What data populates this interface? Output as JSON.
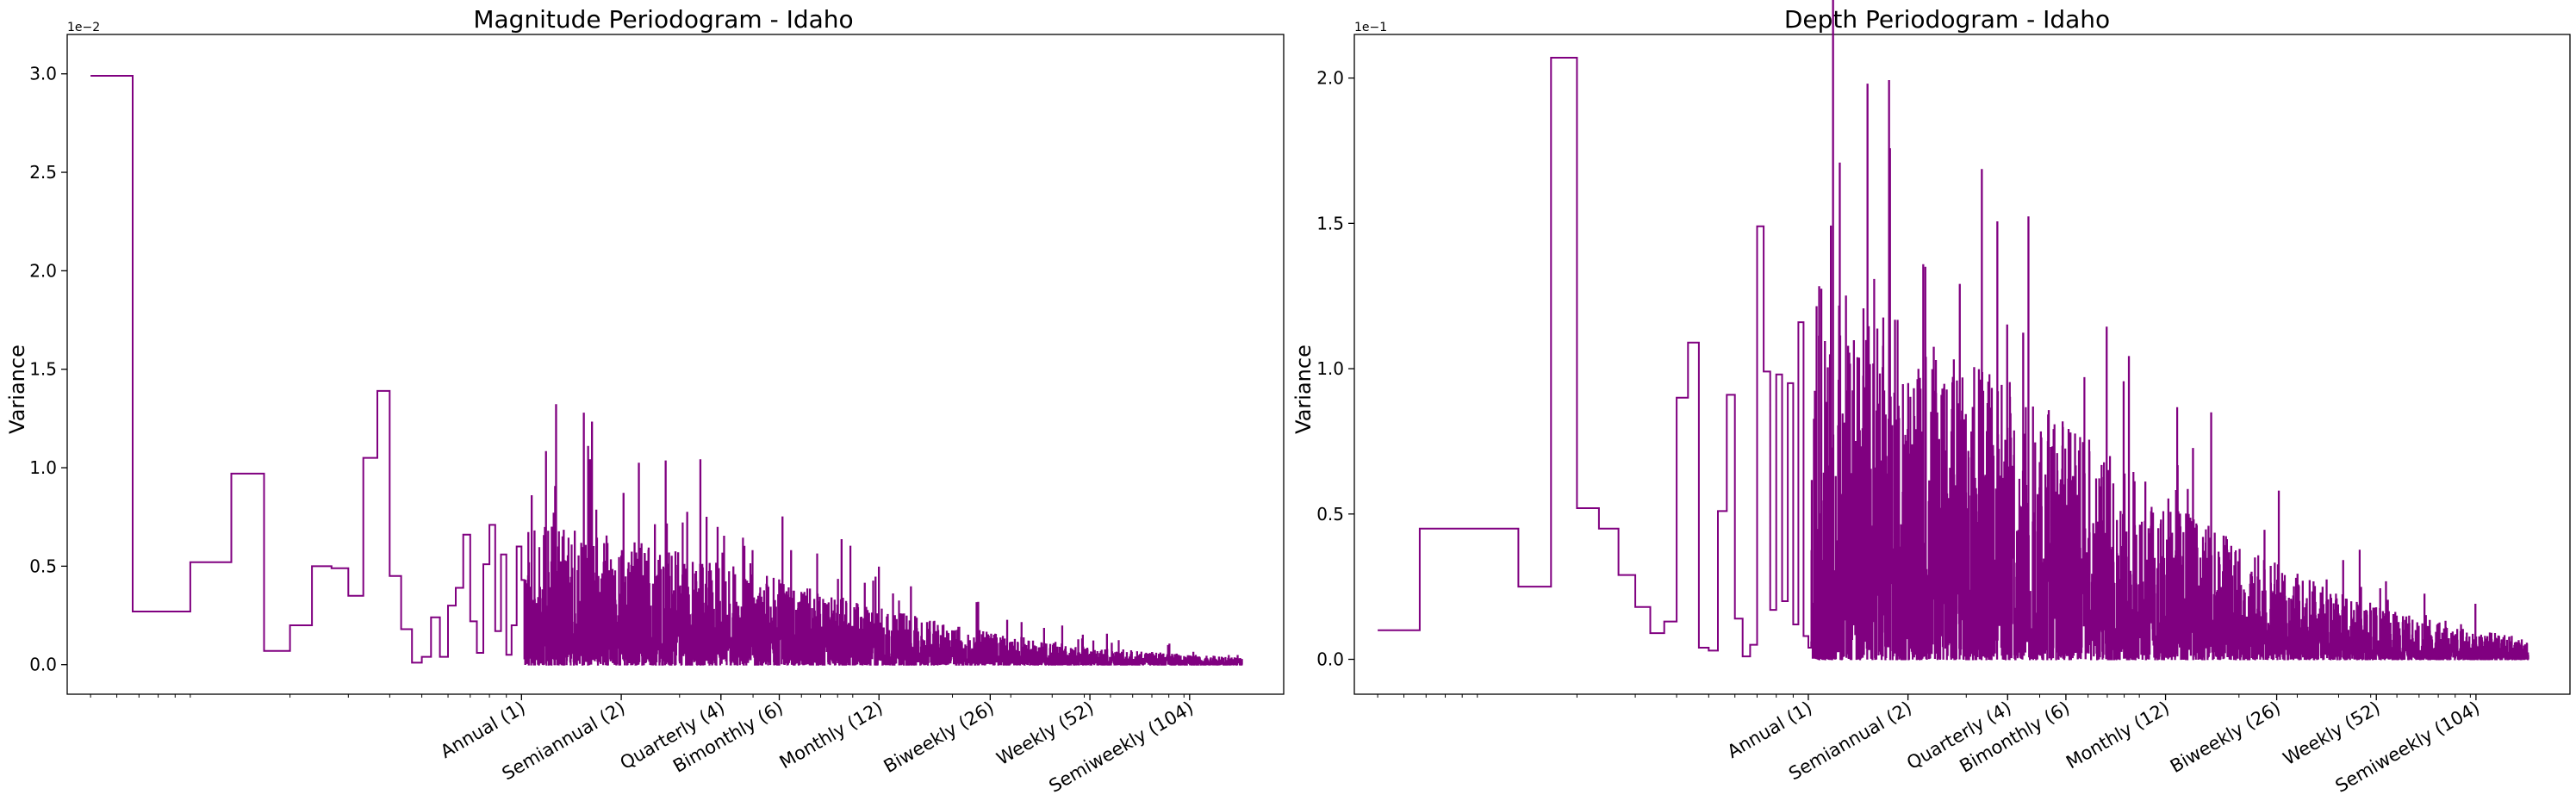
{
  "colors": {
    "line": "#800080",
    "axes": "#000000",
    "background": "#ffffff"
  },
  "chart_data": [
    {
      "type": "line",
      "style": "step",
      "title": "Magnitude Periodogram - Idaho",
      "ylabel": "Variance",
      "y_offset_label": "1e−2",
      "x_scale": "log",
      "yticks": [
        0.0,
        0.5,
        1.0,
        1.5,
        2.0,
        2.5,
        3.0
      ],
      "ytick_labels": [
        "0.0",
        "0.5",
        "1.0",
        "1.5",
        "2.0",
        "2.5",
        "3.0"
      ],
      "ylim": [
        -0.15,
        3.2
      ],
      "xtick_labels": [
        "Annual (1)",
        "Semiannual (2)",
        "Quarterly (4)",
        "Bimonthly (6)",
        "Monthly (12)",
        "Biweekly (26)",
        "Weekly (52)",
        "Semiweekly (104)"
      ],
      "xtick_values": [
        1,
        2,
        4,
        6,
        12,
        26,
        52,
        104
      ],
      "xlim": [
        0.0425,
        200
      ],
      "x_start": 0.05,
      "x_end": 150,
      "series_steps": [
        [
          0.05,
          2.99
        ],
        [
          0.067,
          0.27
        ],
        [
          0.1,
          0.52
        ],
        [
          0.133,
          0.97
        ],
        [
          0.167,
          0.07
        ],
        [
          0.2,
          0.2
        ],
        [
          0.233,
          0.5
        ],
        [
          0.267,
          0.49
        ],
        [
          0.3,
          0.35
        ],
        [
          0.333,
          1.05
        ],
        [
          0.367,
          1.39
        ],
        [
          0.4,
          0.45
        ],
        [
          0.433,
          0.18
        ],
        [
          0.467,
          0.01
        ],
        [
          0.5,
          0.04
        ],
        [
          0.533,
          0.24
        ],
        [
          0.567,
          0.04
        ],
        [
          0.6,
          0.3
        ],
        [
          0.633,
          0.39
        ],
        [
          0.667,
          0.66
        ],
        [
          0.7,
          0.22
        ],
        [
          0.733,
          0.06
        ],
        [
          0.767,
          0.51
        ],
        [
          0.8,
          0.71
        ],
        [
          0.833,
          0.17
        ],
        [
          0.867,
          0.56
        ],
        [
          0.9,
          0.05
        ],
        [
          0.933,
          0.2
        ],
        [
          0.967,
          0.6
        ],
        [
          1.0,
          0.43
        ]
      ],
      "seed": 11,
      "tail_scale": 0.6,
      "tail_decay": 25
    },
    {
      "type": "line",
      "style": "step",
      "title": "Depth Periodogram - Idaho",
      "ylabel": "Variance",
      "y_offset_label": "1e−1",
      "x_scale": "log",
      "yticks": [
        0.0,
        0.5,
        1.0,
        1.5,
        2.0
      ],
      "ytick_labels": [
        "0.0",
        "0.5",
        "1.0",
        "1.5",
        "2.0"
      ],
      "ylim": [
        -0.12,
        2.15
      ],
      "xtick_labels": [
        "Annual (1)",
        "Semiannual (2)",
        "Quarterly (4)",
        "Bimonthly (6)",
        "Monthly (12)",
        "Biweekly (26)",
        "Weekly (52)",
        "Semiweekly (104)"
      ],
      "xtick_values": [
        1,
        2,
        4,
        6,
        12,
        26,
        52,
        104
      ],
      "xlim": [
        0.0425,
        200
      ],
      "x_start": 0.05,
      "x_end": 150,
      "series_steps": [
        [
          0.05,
          0.1
        ],
        [
          0.067,
          0.45
        ],
        [
          0.133,
          0.25
        ],
        [
          0.167,
          2.07
        ],
        [
          0.2,
          0.52
        ],
        [
          0.233,
          0.45
        ],
        [
          0.267,
          0.29
        ],
        [
          0.3,
          0.18
        ],
        [
          0.333,
          0.09
        ],
        [
          0.367,
          0.13
        ],
        [
          0.4,
          0.9
        ],
        [
          0.433,
          1.09
        ],
        [
          0.467,
          0.04
        ],
        [
          0.5,
          0.03
        ],
        [
          0.533,
          0.51
        ],
        [
          0.567,
          0.91
        ],
        [
          0.6,
          0.14
        ],
        [
          0.633,
          0.01
        ],
        [
          0.667,
          0.05
        ],
        [
          0.7,
          1.49
        ],
        [
          0.733,
          0.99
        ],
        [
          0.767,
          0.17
        ],
        [
          0.8,
          0.98
        ],
        [
          0.833,
          0.2
        ],
        [
          0.867,
          0.95
        ],
        [
          0.9,
          0.12
        ],
        [
          0.933,
          1.16
        ],
        [
          0.967,
          0.08
        ],
        [
          1.0,
          0.04
        ]
      ],
      "seed": 23,
      "tail_scale": 1.05,
      "tail_decay": 30
    }
  ]
}
